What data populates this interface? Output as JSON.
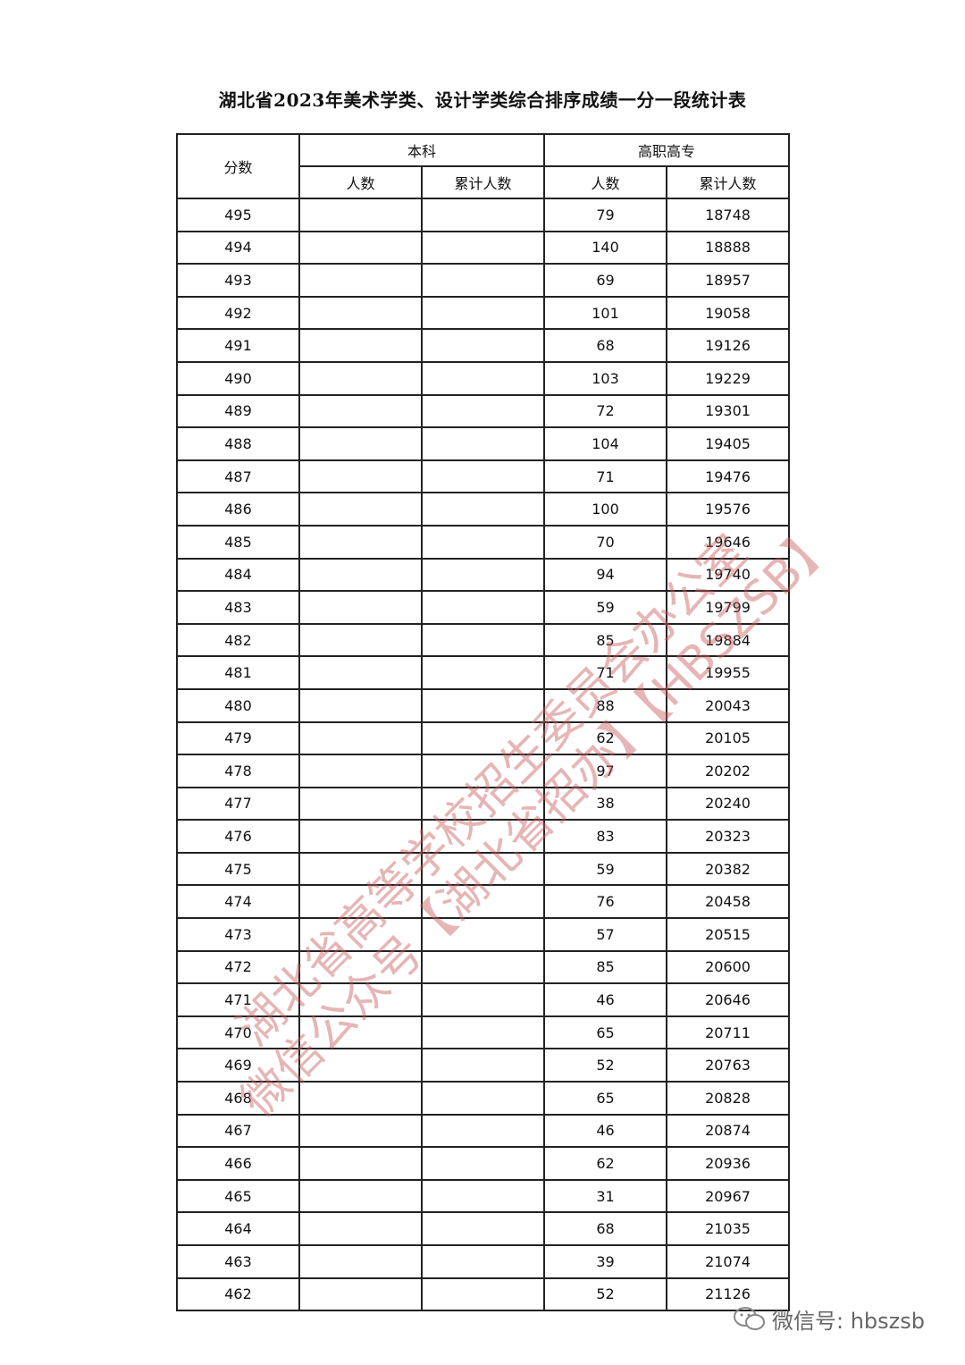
{
  "title": "湖北省2023年美术学类、设计学类综合排序成绩一分一段统计表",
  "headers": {
    "score": "分数",
    "benke": "本科",
    "gaozhi": "高职高专",
    "count": "人数",
    "cumulative": "累计人数"
  },
  "rows": [
    {
      "score": "495",
      "bk_count": "",
      "bk_cum": "",
      "gz_count": "79",
      "gz_cum": "18748"
    },
    {
      "score": "494",
      "bk_count": "",
      "bk_cum": "",
      "gz_count": "140",
      "gz_cum": "18888"
    },
    {
      "score": "493",
      "bk_count": "",
      "bk_cum": "",
      "gz_count": "69",
      "gz_cum": "18957"
    },
    {
      "score": "492",
      "bk_count": "",
      "bk_cum": "",
      "gz_count": "101",
      "gz_cum": "19058"
    },
    {
      "score": "491",
      "bk_count": "",
      "bk_cum": "",
      "gz_count": "68",
      "gz_cum": "19126"
    },
    {
      "score": "490",
      "bk_count": "",
      "bk_cum": "",
      "gz_count": "103",
      "gz_cum": "19229"
    },
    {
      "score": "489",
      "bk_count": "",
      "bk_cum": "",
      "gz_count": "72",
      "gz_cum": "19301"
    },
    {
      "score": "488",
      "bk_count": "",
      "bk_cum": "",
      "gz_count": "104",
      "gz_cum": "19405"
    },
    {
      "score": "487",
      "bk_count": "",
      "bk_cum": "",
      "gz_count": "71",
      "gz_cum": "19476"
    },
    {
      "score": "486",
      "bk_count": "",
      "bk_cum": "",
      "gz_count": "100",
      "gz_cum": "19576"
    },
    {
      "score": "485",
      "bk_count": "",
      "bk_cum": "",
      "gz_count": "70",
      "gz_cum": "19646"
    },
    {
      "score": "484",
      "bk_count": "",
      "bk_cum": "",
      "gz_count": "94",
      "gz_cum": "19740"
    },
    {
      "score": "483",
      "bk_count": "",
      "bk_cum": "",
      "gz_count": "59",
      "gz_cum": "19799"
    },
    {
      "score": "482",
      "bk_count": "",
      "bk_cum": "",
      "gz_count": "85",
      "gz_cum": "19884"
    },
    {
      "score": "481",
      "bk_count": "",
      "bk_cum": "",
      "gz_count": "71",
      "gz_cum": "19955"
    },
    {
      "score": "480",
      "bk_count": "",
      "bk_cum": "",
      "gz_count": "88",
      "gz_cum": "20043"
    },
    {
      "score": "479",
      "bk_count": "",
      "bk_cum": "",
      "gz_count": "62",
      "gz_cum": "20105"
    },
    {
      "score": "478",
      "bk_count": "",
      "bk_cum": "",
      "gz_count": "97",
      "gz_cum": "20202"
    },
    {
      "score": "477",
      "bk_count": "",
      "bk_cum": "",
      "gz_count": "38",
      "gz_cum": "20240"
    },
    {
      "score": "476",
      "bk_count": "",
      "bk_cum": "",
      "gz_count": "83",
      "gz_cum": "20323"
    },
    {
      "score": "475",
      "bk_count": "",
      "bk_cum": "",
      "gz_count": "59",
      "gz_cum": "20382"
    },
    {
      "score": "474",
      "bk_count": "",
      "bk_cum": "",
      "gz_count": "76",
      "gz_cum": "20458"
    },
    {
      "score": "473",
      "bk_count": "",
      "bk_cum": "",
      "gz_count": "57",
      "gz_cum": "20515"
    },
    {
      "score": "472",
      "bk_count": "",
      "bk_cum": "",
      "gz_count": "85",
      "gz_cum": "20600"
    },
    {
      "score": "471",
      "bk_count": "",
      "bk_cum": "",
      "gz_count": "46",
      "gz_cum": "20646"
    },
    {
      "score": "470",
      "bk_count": "",
      "bk_cum": "",
      "gz_count": "65",
      "gz_cum": "20711"
    },
    {
      "score": "469",
      "bk_count": "",
      "bk_cum": "",
      "gz_count": "52",
      "gz_cum": "20763"
    },
    {
      "score": "468",
      "bk_count": "",
      "bk_cum": "",
      "gz_count": "65",
      "gz_cum": "20828"
    },
    {
      "score": "467",
      "bk_count": "",
      "bk_cum": "",
      "gz_count": "46",
      "gz_cum": "20874"
    },
    {
      "score": "466",
      "bk_count": "",
      "bk_cum": "",
      "gz_count": "62",
      "gz_cum": "20936"
    },
    {
      "score": "465",
      "bk_count": "",
      "bk_cum": "",
      "gz_count": "31",
      "gz_cum": "20967"
    },
    {
      "score": "464",
      "bk_count": "",
      "bk_cum": "",
      "gz_count": "68",
      "gz_cum": "21035"
    },
    {
      "score": "463",
      "bk_count": "",
      "bk_cum": "",
      "gz_count": "39",
      "gz_cum": "21074"
    },
    {
      "score": "462",
      "bk_count": "",
      "bk_cum": "",
      "gz_count": "52",
      "gz_cum": "21126"
    }
  ],
  "watermark": {
    "line1": "湖北省高等学校招生委员会办公室",
    "line2": "微信公众号【湖北省招办】【HBSZSB】",
    "color": "#c85a5a"
  },
  "footer": {
    "icon": "wechat-icon",
    "text": "微信号: hbszsb"
  }
}
